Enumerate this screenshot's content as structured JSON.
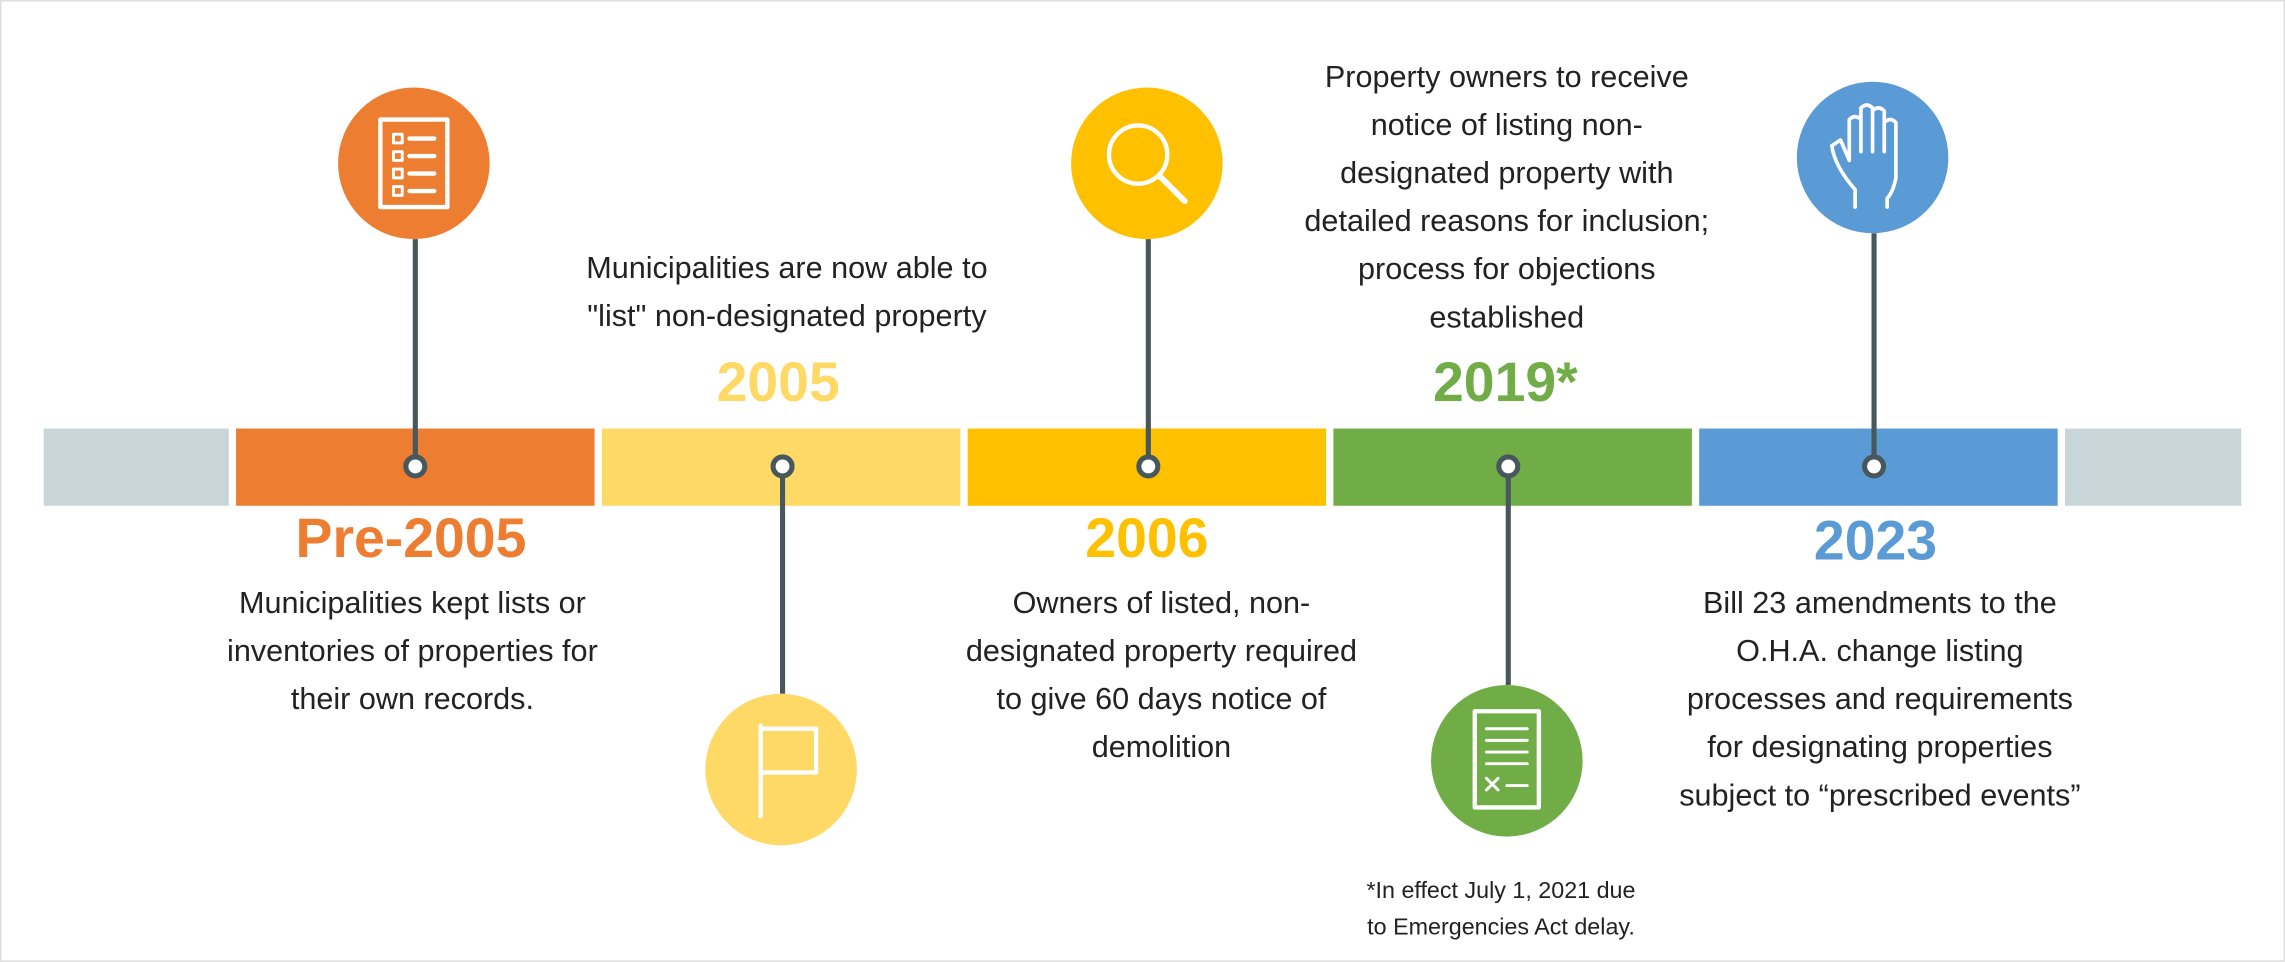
{
  "events": [
    {
      "year": "Pre-2005",
      "lines": [
        "Municipalities kept lists or",
        "inventories of properties for",
        "their own records."
      ]
    },
    {
      "year": "2005",
      "lines": [
        "Municipalities are now able to",
        "\"list\" non-designated property"
      ]
    },
    {
      "year": "2006",
      "lines": [
        "Owners of listed, non-",
        "designated property required",
        "to give 60 days notice of",
        "demolition"
      ]
    },
    {
      "year": "2019*",
      "lines": [
        "Property owners to receive",
        "notice of listing non-",
        "designated property with",
        "detailed reasons for inclusion;",
        "process for objections",
        "established"
      ]
    },
    {
      "year": "2023",
      "lines": [
        "Bill 23 amendments to the",
        "O.H.A. change listing",
        "processes and requirements",
        "for designating properties",
        "subject to “prescribed events”"
      ]
    }
  ],
  "footnote": [
    "*In effect July 1, 2021 due",
    "to Emergencies Act delay."
  ]
}
